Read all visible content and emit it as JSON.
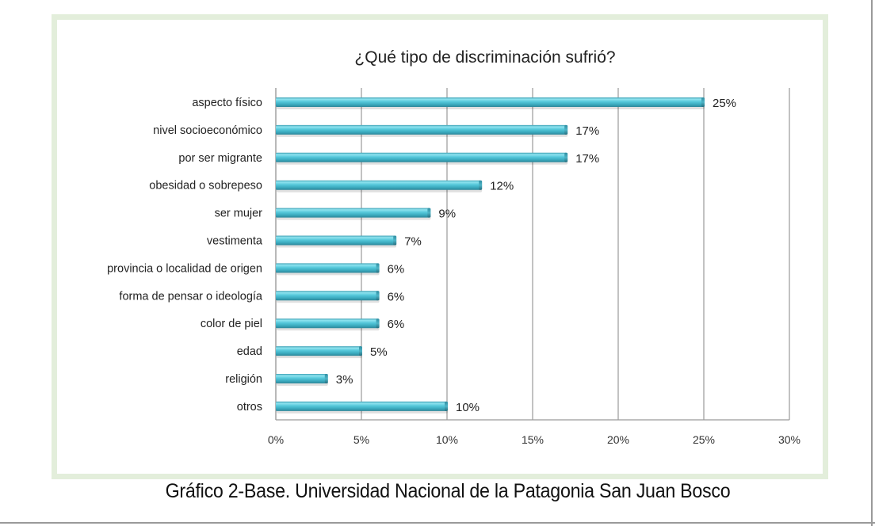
{
  "chart_data": {
    "type": "bar",
    "orientation": "horizontal",
    "title": "¿Qué tipo de discriminación sufrió?",
    "xlabel": "",
    "ylabel": "",
    "categories": [
      "aspecto físico",
      "nivel socioeconómico",
      "por ser migrante",
      "obesidad o sobrepeso",
      "ser mujer",
      "vestimenta",
      "provincia o localidad de origen",
      "forma de pensar o ideología",
      "color de piel",
      "edad",
      "religión",
      "otros"
    ],
    "values": [
      25,
      17,
      17,
      12,
      9,
      7,
      6,
      6,
      6,
      5,
      3,
      10
    ],
    "data_labels": [
      "25%",
      "17%",
      "17%",
      "12%",
      "9%",
      "7%",
      "6%",
      "6%",
      "6%",
      "5%",
      "3%",
      "10%"
    ],
    "xlim": [
      0,
      30
    ],
    "x_ticks": [
      0,
      5,
      10,
      15,
      20,
      25,
      30
    ],
    "x_tick_labels": [
      "0%",
      "5%",
      "10%",
      "15%",
      "20%",
      "25%",
      "30%"
    ],
    "grid": true,
    "legend": "none",
    "bar_color": "#4bbccf"
  },
  "caption": "Gráfico 2-Base. Universidad Nacional de la Patagonia San Juan Bosco"
}
